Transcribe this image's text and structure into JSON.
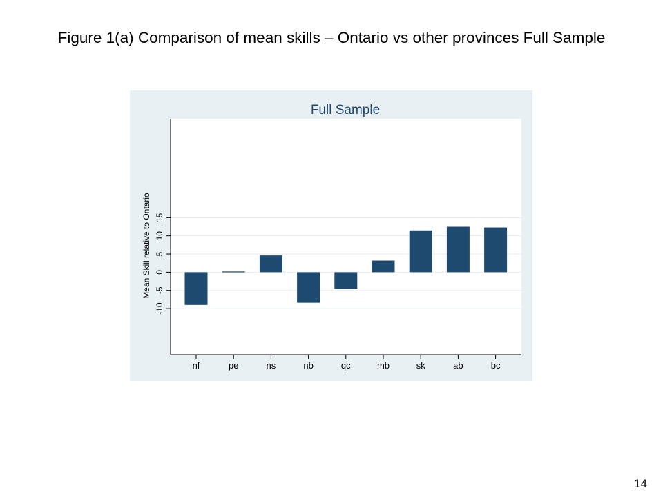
{
  "slide": {
    "title": "Figure 1(a) Comparison of mean skills – Ontario vs other provinces Full Sample",
    "page_number": "14"
  },
  "chart_data": {
    "type": "bar",
    "title": "Full Sample",
    "xlabel": "",
    "ylabel": "Mean Skill relative to Ontario",
    "categories": [
      "nf",
      "pe",
      "ns",
      "nb",
      "qc",
      "mb",
      "sk",
      "ab",
      "bc"
    ],
    "values": [
      -9,
      0.2,
      4.6,
      -8.4,
      -4.5,
      3.2,
      11.5,
      12.5,
      12.3
    ],
    "yticks": [
      -10,
      -5,
      0,
      5,
      10,
      15
    ],
    "ytick_labels": [
      "-10",
      "-5",
      "0",
      "5",
      "10",
      "15"
    ],
    "ylim": [
      -22.7,
      42.2
    ],
    "grid": true,
    "colors": {
      "bar": "#1f4a70",
      "plot_background": "#ffffff",
      "outer_background": "#e9f0f3",
      "gridline": "#e4ecf0",
      "title": "#1f4a70"
    }
  }
}
